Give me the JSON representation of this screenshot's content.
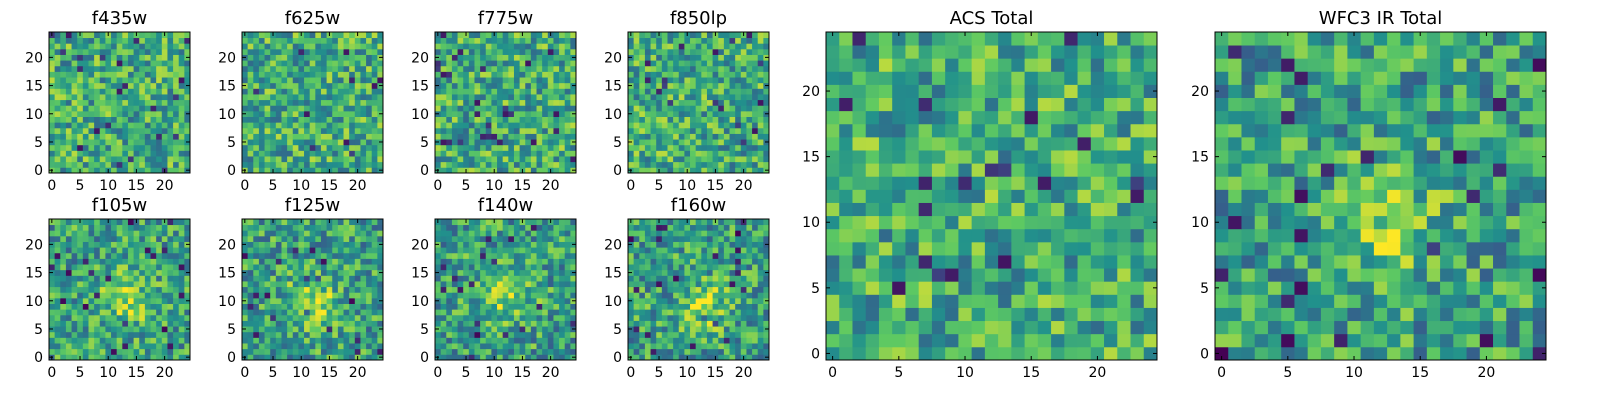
{
  "figure": {
    "colormap": "viridis",
    "colormap_stops": [
      "#440154",
      "#3b528b",
      "#21918c",
      "#5ec962",
      "#fde725"
    ]
  },
  "chart_data": [
    {
      "type": "heatmap",
      "title": "f435w",
      "size": 25,
      "xlim": [
        0,
        24
      ],
      "ylim": [
        0,
        24
      ],
      "xticks": [
        0,
        5,
        10,
        15,
        20
      ],
      "yticks": [
        0,
        5,
        10,
        15,
        20
      ],
      "values_pattern": "noise"
    },
    {
      "type": "heatmap",
      "title": "f625w",
      "size": 25,
      "xlim": [
        0,
        24
      ],
      "ylim": [
        0,
        24
      ],
      "xticks": [
        0,
        5,
        10,
        15,
        20
      ],
      "yticks": [
        0,
        5,
        10,
        15,
        20
      ],
      "values_pattern": "noise"
    },
    {
      "type": "heatmap",
      "title": "f775w",
      "size": 25,
      "xlim": [
        0,
        24
      ],
      "ylim": [
        0,
        24
      ],
      "xticks": [
        0,
        5,
        10,
        15,
        20
      ],
      "yticks": [
        0,
        5,
        10,
        15,
        20
      ],
      "values_pattern": "noise"
    },
    {
      "type": "heatmap",
      "title": "f850lp",
      "size": 25,
      "xlim": [
        0,
        24
      ],
      "ylim": [
        0,
        24
      ],
      "xticks": [
        0,
        5,
        10,
        15,
        20
      ],
      "yticks": [
        0,
        5,
        10,
        15,
        20
      ],
      "values_pattern": "noise"
    },
    {
      "type": "heatmap",
      "title": "f105w",
      "size": 25,
      "xlim": [
        0,
        24
      ],
      "ylim": [
        0,
        24
      ],
      "xticks": [
        0,
        5,
        10,
        15,
        20
      ],
      "yticks": [
        0,
        5,
        10,
        15,
        20
      ],
      "values_pattern": "noise",
      "source_center": [
        13,
        10
      ]
    },
    {
      "type": "heatmap",
      "title": "f125w",
      "size": 25,
      "xlim": [
        0,
        24
      ],
      "ylim": [
        0,
        24
      ],
      "xticks": [
        0,
        5,
        10,
        15,
        20
      ],
      "yticks": [
        0,
        5,
        10,
        15,
        20
      ],
      "values_pattern": "noise",
      "source_center": [
        12,
        10
      ]
    },
    {
      "type": "heatmap",
      "title": "f140w",
      "size": 25,
      "xlim": [
        0,
        24
      ],
      "ylim": [
        0,
        24
      ],
      "xticks": [
        0,
        5,
        10,
        15,
        20
      ],
      "yticks": [
        0,
        5,
        10,
        15,
        20
      ],
      "values_pattern": "noise",
      "source_center": [
        12,
        11
      ]
    },
    {
      "type": "heatmap",
      "title": "f160w",
      "size": 25,
      "xlim": [
        0,
        24
      ],
      "ylim": [
        0,
        24
      ],
      "xticks": [
        0,
        5,
        10,
        15,
        20
      ],
      "yticks": [
        0,
        5,
        10,
        15,
        20
      ],
      "values_pattern": "noise",
      "source_center": [
        13,
        9
      ]
    },
    {
      "type": "heatmap",
      "title": "ACS Total",
      "size": 25,
      "xlim": [
        0,
        24
      ],
      "ylim": [
        0,
        24
      ],
      "xticks": [
        0,
        5,
        10,
        15,
        20
      ],
      "yticks": [
        0,
        5,
        10,
        15,
        20
      ],
      "values_pattern": "noise"
    },
    {
      "type": "heatmap",
      "title": "WFC3 IR Total",
      "size": 25,
      "xlim": [
        0,
        24
      ],
      "ylim": [
        0,
        24
      ],
      "xticks": [
        0,
        5,
        10,
        15,
        20
      ],
      "yticks": [
        0,
        5,
        10,
        15,
        20
      ],
      "values_pattern": "noise",
      "source_center": [
        12,
        10
      ]
    }
  ]
}
